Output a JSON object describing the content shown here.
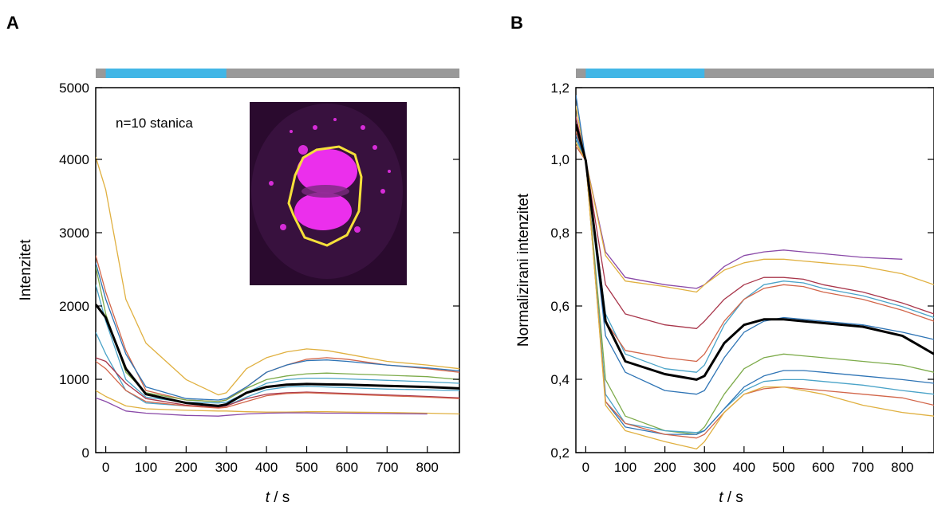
{
  "panels": [
    {
      "letter": "A",
      "ylabel": "Intenzitet",
      "xlabel_var": "t",
      "xlabel_unit": " / s",
      "annotation": "n=10 stanica",
      "xticks": [
        "0",
        "100",
        "200",
        "300",
        "400",
        "500",
        "600",
        "700",
        "800"
      ],
      "yticks": [
        "0",
        "1000",
        "2000",
        "3000",
        "4000",
        "5000"
      ]
    },
    {
      "letter": "B",
      "ylabel": "Normalizirani intenzitet",
      "xlabel_var": "t",
      "xlabel_unit": " / s",
      "xticks": [
        "0",
        "100",
        "200",
        "300",
        "400",
        "500",
        "600",
        "700",
        "800"
      ],
      "yticks": [
        "0,2",
        "0,4",
        "0,6",
        "0,8",
        "1,0",
        "1,2"
      ]
    }
  ],
  "colors": {
    "stimulus_on": "#41b6e6",
    "stimulus_off": "#999999",
    "mean": "#000000",
    "inset_bg": "#2a0a2e",
    "inset_cell": "#ff33ff",
    "inset_roi": "#f5e03a"
  },
  "chart_data": [
    {
      "type": "line",
      "panel": "A",
      "xlabel": "t / s",
      "ylabel": "Intenzitet",
      "xlim": [
        -25,
        880
      ],
      "ylim": [
        0,
        5000
      ],
      "grid": false,
      "stimulus_bar": {
        "on": [
          0,
          300
        ]
      },
      "inset": "fluorescence micrograph of a magenta-stained cell with a yellow ROI outline",
      "series": [
        {
          "color": "#e0b040",
          "x": [
            -25,
            0,
            50,
            100,
            200,
            280,
            300,
            350,
            400,
            450,
            500,
            550,
            600,
            700,
            800,
            880
          ],
          "y": [
            4050,
            3600,
            2100,
            1500,
            1000,
            790,
            820,
            1150,
            1300,
            1380,
            1420,
            1400,
            1350,
            1250,
            1200,
            1150
          ]
        },
        {
          "color": "#d2664a",
          "x": [
            -25,
            0,
            50,
            100,
            200,
            280,
            300,
            350,
            400,
            450,
            500,
            550,
            600,
            700,
            800,
            880
          ],
          "y": [
            2700,
            2200,
            1400,
            850,
            720,
            700,
            720,
            900,
            1100,
            1200,
            1280,
            1300,
            1280,
            1200,
            1150,
            1100
          ]
        },
        {
          "color": "#2e74b5",
          "x": [
            -25,
            0,
            50,
            100,
            200,
            280,
            300,
            350,
            400,
            450,
            500,
            550,
            600,
            700,
            800,
            880
          ],
          "y": [
            2600,
            2100,
            1350,
            900,
            740,
            720,
            740,
            900,
            1100,
            1200,
            1260,
            1270,
            1250,
            1200,
            1160,
            1120
          ]
        },
        {
          "color": "#7dab4a",
          "x": [
            -25,
            0,
            50,
            100,
            200,
            280,
            300,
            350,
            400,
            450,
            500,
            550,
            600,
            700,
            800,
            880
          ],
          "y": [
            2550,
            1900,
            1100,
            820,
            720,
            700,
            720,
            880,
            1000,
            1050,
            1080,
            1090,
            1080,
            1060,
            1040,
            1000
          ]
        },
        {
          "color": "#4aa3c8",
          "x": [
            -25,
            0,
            50,
            100,
            200,
            280,
            300,
            350,
            400,
            450,
            500,
            550,
            600,
            700,
            800,
            880
          ],
          "y": [
            2300,
            1800,
            1000,
            760,
            690,
            680,
            690,
            820,
            950,
            1000,
            1020,
            1020,
            1010,
            990,
            970,
            950
          ]
        },
        {
          "color": "#4aa3c8",
          "x": [
            -25,
            0,
            50,
            100,
            200,
            280,
            300,
            350,
            400,
            450,
            500,
            550,
            600,
            700,
            800,
            880
          ],
          "y": [
            1650,
            1350,
            850,
            680,
            640,
            630,
            640,
            760,
            860,
            900,
            910,
            900,
            890,
            870,
            860,
            850
          ]
        },
        {
          "color": "#a8354a",
          "x": [
            -25,
            0,
            50,
            100,
            200,
            280,
            300,
            350,
            400,
            450,
            500,
            550,
            600,
            700,
            800,
            880
          ],
          "y": [
            1300,
            1250,
            950,
            740,
            650,
            620,
            640,
            740,
            800,
            820,
            830,
            820,
            810,
            790,
            770,
            750
          ]
        },
        {
          "color": "#d2664a",
          "x": [
            -25,
            0,
            50,
            100,
            200,
            280,
            300,
            350,
            400,
            450,
            500,
            550,
            600,
            700,
            800,
            880
          ],
          "y": [
            1250,
            1150,
            850,
            700,
            640,
            610,
            620,
            700,
            780,
            810,
            820,
            810,
            800,
            780,
            760,
            740
          ]
        },
        {
          "color": "#e0b040",
          "x": [
            -25,
            0,
            50,
            100,
            200,
            280,
            300,
            350,
            400,
            450,
            500,
            550,
            600,
            700,
            800,
            880
          ],
          "y": [
            850,
            770,
            640,
            600,
            580,
            570,
            570,
            560,
            555,
            555,
            560,
            560,
            555,
            550,
            540,
            530
          ]
        },
        {
          "color": "#8a4aa8",
          "x": [
            -25,
            0,
            50,
            100,
            200,
            280,
            300,
            350,
            400,
            450,
            500,
            550,
            600,
            700,
            800
          ],
          "y": [
            750,
            700,
            570,
            540,
            510,
            500,
            510,
            530,
            540,
            545,
            545,
            540,
            540,
            535,
            530
          ]
        },
        {
          "name": "mean",
          "color": "#000000",
          "x": [
            -25,
            0,
            50,
            100,
            200,
            280,
            300,
            350,
            400,
            450,
            500,
            550,
            600,
            700,
            800,
            880
          ],
          "y": [
            2030,
            1850,
            1150,
            800,
            680,
            640,
            660,
            820,
            900,
            930,
            940,
            935,
            930,
            915,
            900,
            880
          ]
        }
      ]
    },
    {
      "type": "line",
      "panel": "B",
      "xlabel": "t / s",
      "ylabel": "Normalizirani intenzitet",
      "xlim": [
        -25,
        880
      ],
      "ylim": [
        0.2,
        1.2
      ],
      "grid": false,
      "stimulus_bar": {
        "on": [
          0,
          300
        ]
      },
      "series": [
        {
          "color": "#8a4aa8",
          "x": [
            -25,
            0,
            50,
            100,
            200,
            280,
            300,
            350,
            400,
            450,
            500,
            550,
            600,
            700,
            800
          ],
          "y": [
            1.12,
            1.0,
            0.75,
            0.68,
            0.66,
            0.65,
            0.66,
            0.71,
            0.74,
            0.75,
            0.755,
            0.75,
            0.745,
            0.735,
            0.73
          ]
        },
        {
          "color": "#e0b040",
          "x": [
            -25,
            0,
            50,
            100,
            200,
            280,
            300,
            350,
            400,
            450,
            500,
            550,
            600,
            700,
            800,
            880
          ],
          "y": [
            1.15,
            1.0,
            0.74,
            0.67,
            0.655,
            0.64,
            0.66,
            0.7,
            0.72,
            0.73,
            0.73,
            0.725,
            0.72,
            0.71,
            0.69,
            0.66
          ]
        },
        {
          "color": "#a8354a",
          "x": [
            -25,
            0,
            50,
            100,
            200,
            280,
            300,
            350,
            400,
            450,
            500,
            550,
            600,
            700,
            800,
            880
          ],
          "y": [
            1.12,
            1.0,
            0.66,
            0.58,
            0.55,
            0.54,
            0.56,
            0.62,
            0.66,
            0.68,
            0.68,
            0.675,
            0.66,
            0.64,
            0.61,
            0.58
          ]
        },
        {
          "color": "#4aa3c8",
          "x": [
            -25,
            0,
            50,
            100,
            200,
            280,
            300,
            350,
            400,
            450,
            500,
            550,
            600,
            700,
            800,
            880
          ],
          "y": [
            1.1,
            1.0,
            0.58,
            0.47,
            0.43,
            0.42,
            0.44,
            0.55,
            0.62,
            0.66,
            0.67,
            0.665,
            0.65,
            0.63,
            0.6,
            0.57
          ]
        },
        {
          "color": "#d2664a",
          "x": [
            -25,
            0,
            50,
            100,
            200,
            280,
            300,
            350,
            400,
            450,
            500,
            550,
            600,
            700,
            800,
            880
          ],
          "y": [
            1.08,
            1.0,
            0.56,
            0.48,
            0.46,
            0.45,
            0.47,
            0.56,
            0.62,
            0.65,
            0.66,
            0.655,
            0.64,
            0.62,
            0.59,
            0.56
          ]
        },
        {
          "color": "#2e74b5",
          "x": [
            -25,
            0,
            50,
            100,
            200,
            280,
            300,
            350,
            400,
            450,
            500,
            550,
            600,
            700,
            800,
            880
          ],
          "y": [
            1.18,
            1.0,
            0.52,
            0.42,
            0.37,
            0.36,
            0.37,
            0.46,
            0.53,
            0.56,
            0.57,
            0.565,
            0.56,
            0.55,
            0.53,
            0.51
          ]
        },
        {
          "color": "#7dab4a",
          "x": [
            -25,
            0,
            50,
            100,
            200,
            280,
            300,
            350,
            400,
            450,
            500,
            550,
            600,
            700,
            800,
            880
          ],
          "y": [
            1.05,
            1.0,
            0.4,
            0.3,
            0.26,
            0.25,
            0.27,
            0.36,
            0.43,
            0.46,
            0.47,
            0.465,
            0.46,
            0.45,
            0.44,
            0.42
          ]
        },
        {
          "color": "#4aa3c8",
          "x": [
            -25,
            0,
            50,
            100,
            200,
            280,
            300,
            350,
            400,
            450,
            500,
            550,
            600,
            700,
            800,
            880
          ],
          "y": [
            1.06,
            1.0,
            0.36,
            0.28,
            0.26,
            0.255,
            0.26,
            0.32,
            0.37,
            0.395,
            0.4,
            0.4,
            0.395,
            0.385,
            0.37,
            0.36
          ]
        },
        {
          "color": "#2e74b5",
          "x": [
            -25,
            0,
            50,
            100,
            200,
            280,
            300,
            350,
            400,
            450,
            500,
            550,
            600,
            700,
            800,
            880
          ],
          "y": [
            1.07,
            1.0,
            0.34,
            0.27,
            0.25,
            0.25,
            0.26,
            0.32,
            0.38,
            0.41,
            0.425,
            0.425,
            0.42,
            0.41,
            0.4,
            0.39
          ]
        },
        {
          "color": "#d2664a",
          "x": [
            -25,
            0,
            50,
            100,
            200,
            280,
            300,
            350,
            400,
            450,
            500,
            550,
            600,
            700,
            800,
            880
          ],
          "y": [
            1.04,
            1.0,
            0.34,
            0.28,
            0.25,
            0.24,
            0.25,
            0.31,
            0.36,
            0.375,
            0.38,
            0.375,
            0.37,
            0.36,
            0.35,
            0.33
          ]
        },
        {
          "color": "#e0b040",
          "x": [
            -25,
            0,
            50,
            100,
            200,
            280,
            300,
            350,
            400,
            450,
            500,
            550,
            600,
            700,
            800,
            880
          ],
          "y": [
            1.05,
            1.0,
            0.33,
            0.26,
            0.23,
            0.21,
            0.23,
            0.31,
            0.36,
            0.38,
            0.38,
            0.37,
            0.36,
            0.33,
            0.31,
            0.3
          ]
        },
        {
          "name": "mean",
          "color": "#000000",
          "x": [
            -25,
            0,
            50,
            100,
            200,
            280,
            300,
            350,
            400,
            450,
            500,
            550,
            600,
            700,
            800,
            880
          ],
          "y": [
            1.1,
            1.0,
            0.56,
            0.45,
            0.415,
            0.4,
            0.41,
            0.5,
            0.55,
            0.565,
            0.565,
            0.56,
            0.555,
            0.545,
            0.52,
            0.47
          ]
        }
      ]
    }
  ]
}
